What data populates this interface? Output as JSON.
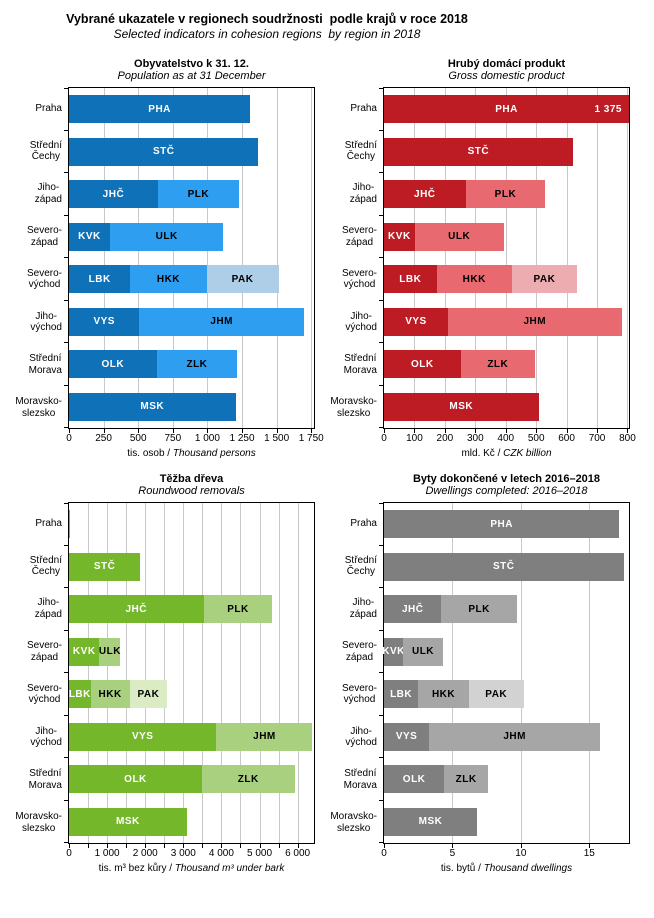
{
  "header": {
    "title": "Vybrané ukazatele v regionech soudržnosti  podle krajů v roce 2018",
    "subtitle": "Selected indicators in cohesion regions  by region in 2018"
  },
  "colors": {
    "blue_dark": "#0F72B8",
    "blue_mid": "#2E9FF0",
    "blue_light": "#AECDE6",
    "red_dark": "#BD1C24",
    "red_mid": "#E8696F",
    "red_light": "#ECACB0",
    "green_dark": "#74B72B",
    "green_mid": "#A9D07F",
    "green_light": "#DBECC5",
    "gray_dark": "#7F7F7F",
    "gray_mid": "#A6A6A6",
    "gray_light": "#D2D2D2",
    "gridline": "#C8C8C8",
    "axis": "#000000"
  },
  "chart_data": [
    {
      "id": "population",
      "type": "bar",
      "orientation": "horizontal-stacked",
      "title": "Obyvatelstvo k 31. 12.",
      "subtitle": "Population as at 31 December",
      "xlabel": {
        "cz": "tis. osob",
        "sep": " / ",
        "en": "Thousand persons"
      },
      "xlim": [
        0,
        1770
      ],
      "grid": "on",
      "gridlines": [
        250,
        500,
        750,
        1000,
        1250,
        1500,
        1750
      ],
      "ticks": [
        {
          "value": 0,
          "label": "0"
        },
        {
          "value": 250,
          "label": "250"
        },
        {
          "value": 500,
          "label": "500"
        },
        {
          "value": 750,
          "label": "750"
        },
        {
          "value": 1000,
          "label": "1 000"
        },
        {
          "value": 1250,
          "label": "1 250"
        },
        {
          "value": 1500,
          "label": "1 500"
        },
        {
          "value": 1750,
          "label": "1 750"
        }
      ],
      "palette": [
        "#0F72B8",
        "#2E9FF0",
        "#AECDE6"
      ],
      "rows": [
        {
          "category": "Praha",
          "segments": [
            {
              "code": "PHA",
              "label": "PHA",
              "value": 1309,
              "shade": 0
            }
          ]
        },
        {
          "category": "Střední\nČechy",
          "segments": [
            {
              "code": "STČ",
              "label": "STČ",
              "value": 1369,
              "shade": 0
            }
          ]
        },
        {
          "category": "Jiho-\nzápad",
          "segments": [
            {
              "code": "JHČ",
              "label": "JHČ",
              "value": 642,
              "shade": 0
            },
            {
              "code": "PLK",
              "label": "PLK",
              "value": 585,
              "shade": 1
            }
          ]
        },
        {
          "category": "Severo-\nzápad",
          "segments": [
            {
              "code": "KVK",
              "label": "KVK",
              "value": 295,
              "shade": 0
            },
            {
              "code": "ULK",
              "label": "ULK",
              "value": 821,
              "shade": 1
            }
          ]
        },
        {
          "category": "Severo-\nvýchod",
          "segments": [
            {
              "code": "LBK",
              "label": "LBK",
              "value": 443,
              "shade": 0
            },
            {
              "code": "HKK",
              "label": "HKK",
              "value": 551,
              "shade": 1
            },
            {
              "code": "PAK",
              "label": "PAK",
              "value": 520,
              "shade": 2
            }
          ]
        },
        {
          "category": "Jiho-\nvýchod",
          "segments": [
            {
              "code": "VYS",
              "label": "VYS",
              "value": 509,
              "shade": 0
            },
            {
              "code": "JHM",
              "label": "JHM",
              "value": 1188,
              "shade": 1
            }
          ]
        },
        {
          "category": "Střední\nMorava",
          "segments": [
            {
              "code": "OLK",
              "label": "OLK",
              "value": 633,
              "shade": 0
            },
            {
              "code": "ZLK",
              "label": "ZLK",
              "value": 583,
              "shade": 1
            }
          ]
        },
        {
          "category": "Moravsko-\nslezsko",
          "segments": [
            {
              "code": "MSK",
              "label": "MSK",
              "value": 1203,
              "shade": 0
            }
          ]
        }
      ]
    },
    {
      "id": "gdp",
      "type": "bar",
      "orientation": "horizontal-stacked",
      "title": "Hrubý domácí produkt",
      "subtitle": "Gross domestic product",
      "xlabel": {
        "cz": "mld. Kč",
        "sep": " / ",
        "en": "CZK billion"
      },
      "xlim": [
        0,
        805
      ],
      "grid": "on",
      "gridlines": [
        100,
        200,
        300,
        400,
        500,
        600,
        700,
        800
      ],
      "ticks": [
        {
          "value": 0,
          "label": "0"
        },
        {
          "value": 100,
          "label": "100"
        },
        {
          "value": 200,
          "label": "200"
        },
        {
          "value": 300,
          "label": "300"
        },
        {
          "value": 400,
          "label": "400"
        },
        {
          "value": 500,
          "label": "500"
        },
        {
          "value": 600,
          "label": "600"
        },
        {
          "value": 700,
          "label": "700"
        },
        {
          "value": 800,
          "label": "800"
        }
      ],
      "palette": [
        "#BD1C24",
        "#E8696F",
        "#ECACB0"
      ],
      "rows": [
        {
          "category": "Praha",
          "segments": [
            {
              "code": "PHA",
              "label": "PHA",
              "value": 1375,
              "shade": 0,
              "value_label": "1 375"
            }
          ]
        },
        {
          "category": "Střední\nČechy",
          "segments": [
            {
              "code": "STČ",
              "label": "STČ",
              "value": 620,
              "shade": 0
            }
          ]
        },
        {
          "category": "Jiho-\nzápad",
          "segments": [
            {
              "code": "JHČ",
              "label": "JHČ",
              "value": 268,
              "shade": 0
            },
            {
              "code": "PLK",
              "label": "PLK",
              "value": 262,
              "shade": 1
            }
          ]
        },
        {
          "category": "Severo-\nzápad",
          "segments": [
            {
              "code": "KVK",
              "label": "KVK",
              "value": 101,
              "shade": 0
            },
            {
              "code": "ULK",
              "label": "ULK",
              "value": 292,
              "shade": 1
            }
          ]
        },
        {
          "category": "Severo-\nvýchod",
          "segments": [
            {
              "code": "LBK",
              "label": "LBK",
              "value": 173,
              "shade": 0
            },
            {
              "code": "HKK",
              "label": "HKK",
              "value": 247,
              "shade": 1
            },
            {
              "code": "PAK",
              "label": "PAK",
              "value": 214,
              "shade": 2
            }
          ]
        },
        {
          "category": "Jiho-\nvýchod",
          "segments": [
            {
              "code": "VYS",
              "label": "VYS",
              "value": 210,
              "shade": 0
            },
            {
              "code": "JHM",
              "label": "JHM",
              "value": 571,
              "shade": 1
            }
          ]
        },
        {
          "category": "Střední\nMorava",
          "segments": [
            {
              "code": "OLK",
              "label": "OLK",
              "value": 252,
              "shade": 0
            },
            {
              "code": "ZLK",
              "label": "ZLK",
              "value": 244,
              "shade": 1
            }
          ]
        },
        {
          "category": "Moravsko-\nslezsko",
          "segments": [
            {
              "code": "MSK",
              "label": "MSK",
              "value": 508,
              "shade": 0
            }
          ]
        }
      ]
    },
    {
      "id": "roundwood",
      "type": "bar",
      "orientation": "horizontal-stacked",
      "title": "Těžba dřeva",
      "subtitle": "Roundwood removals",
      "xlabel": {
        "cz": "tis. m³ bez kůry",
        "sep": " / ",
        "en": "Thousand m³ under bark"
      },
      "xlim": [
        0,
        6430
      ],
      "grid": "on",
      "gridlines": [
        500,
        1000,
        1500,
        2000,
        2500,
        3000,
        3500,
        4000,
        4500,
        5000,
        5500,
        6000
      ],
      "ticks": [
        {
          "value": 0,
          "label": "0"
        },
        {
          "value": 500,
          "label": ""
        },
        {
          "value": 1000,
          "label": "1 000"
        },
        {
          "value": 1500,
          "label": ""
        },
        {
          "value": 2000,
          "label": "2 000"
        },
        {
          "value": 2500,
          "label": ""
        },
        {
          "value": 3000,
          "label": "3 000"
        },
        {
          "value": 3500,
          "label": ""
        },
        {
          "value": 4000,
          "label": "4 000"
        },
        {
          "value": 4500,
          "label": ""
        },
        {
          "value": 5000,
          "label": "5 000"
        },
        {
          "value": 5500,
          "label": ""
        },
        {
          "value": 6000,
          "label": "6 000"
        }
      ],
      "palette": [
        "#74B72B",
        "#A9D07F",
        "#DBECC5"
      ],
      "rows": [
        {
          "category": "Praha",
          "segments": [
            {
              "code": "PHA",
              "label": "",
              "value": 30,
              "shade": 0
            }
          ]
        },
        {
          "category": "Střední\nČechy",
          "segments": [
            {
              "code": "STČ",
              "label": "STČ",
              "value": 1870,
              "shade": 0
            }
          ]
        },
        {
          "category": "Jiho-\nzápad",
          "segments": [
            {
              "code": "JHČ",
              "label": "JHČ",
              "value": 3530,
              "shade": 0
            },
            {
              "code": "PLK",
              "label": "PLK",
              "value": 1810,
              "shade": 1
            }
          ]
        },
        {
          "category": "Severo-\nzápad",
          "segments": [
            {
              "code": "KVK",
              "label": "KVK",
              "value": 800,
              "shade": 0
            },
            {
              "code": "ULK",
              "label": "ULK",
              "value": 550,
              "shade": 1
            }
          ]
        },
        {
          "category": "Severo-\nvýchod",
          "segments": [
            {
              "code": "LBK",
              "label": "LBK",
              "value": 570,
              "shade": 0
            },
            {
              "code": "HKK",
              "label": "HKK",
              "value": 1020,
              "shade": 1
            },
            {
              "code": "PAK",
              "label": "PAK",
              "value": 990,
              "shade": 2
            }
          ]
        },
        {
          "category": "Jiho-\nvýchod",
          "segments": [
            {
              "code": "VYS",
              "label": "VYS",
              "value": 3870,
              "shade": 0
            },
            {
              "code": "JHM",
              "label": "JHM",
              "value": 2520,
              "shade": 1
            }
          ]
        },
        {
          "category": "Střední\nMorava",
          "segments": [
            {
              "code": "OLK",
              "label": "OLK",
              "value": 3490,
              "shade": 0
            },
            {
              "code": "ZLK",
              "label": "ZLK",
              "value": 2430,
              "shade": 1
            }
          ]
        },
        {
          "category": "Moravsko-\nslezsko",
          "segments": [
            {
              "code": "MSK",
              "label": "MSK",
              "value": 3090,
              "shade": 0
            }
          ]
        }
      ]
    },
    {
      "id": "dwellings",
      "type": "bar",
      "orientation": "horizontal-stacked",
      "title": "Byty dokončené v letech 2016–2018",
      "subtitle": "Dwellings completed: 2016–2018",
      "xlabel": {
        "cz": "tis. bytů",
        "sep": " / ",
        "en": "Thousand dwellings"
      },
      "xlim": [
        0,
        17.9
      ],
      "grid": "on",
      "gridlines": [
        5,
        10,
        15
      ],
      "ticks": [
        {
          "value": 0,
          "label": "0"
        },
        {
          "value": 5,
          "label": "5"
        },
        {
          "value": 10,
          "label": "10"
        },
        {
          "value": 15,
          "label": "15"
        }
      ],
      "palette": [
        "#7F7F7F",
        "#A6A6A6",
        "#D2D2D2"
      ],
      "rows": [
        {
          "category": "Praha",
          "segments": [
            {
              "code": "PHA",
              "label": "PHA",
              "value": 17.2,
              "shade": 0
            }
          ]
        },
        {
          "category": "Střední\nČechy",
          "segments": [
            {
              "code": "STČ",
              "label": "STČ",
              "value": 17.5,
              "shade": 0
            }
          ]
        },
        {
          "category": "Jiho-\nzápad",
          "segments": [
            {
              "code": "JHČ",
              "label": "JHČ",
              "value": 4.2,
              "shade": 0
            },
            {
              "code": "PLK",
              "label": "PLK",
              "value": 5.5,
              "shade": 1
            }
          ]
        },
        {
          "category": "Severo-\nzápad",
          "segments": [
            {
              "code": "KVK",
              "label": "KVK",
              "value": 1.4,
              "shade": 0
            },
            {
              "code": "ULK",
              "label": "ULK",
              "value": 2.9,
              "shade": 1
            }
          ]
        },
        {
          "category": "Severo-\nvýchod",
          "segments": [
            {
              "code": "LBK",
              "label": "LBK",
              "value": 2.5,
              "shade": 0
            },
            {
              "code": "HKK",
              "label": "HKK",
              "value": 3.7,
              "shade": 1
            },
            {
              "code": "PAK",
              "label": "PAK",
              "value": 4.0,
              "shade": 2
            }
          ]
        },
        {
          "category": "Jiho-\nvýchod",
          "segments": [
            {
              "code": "VYS",
              "label": "VYS",
              "value": 3.3,
              "shade": 0
            },
            {
              "code": "JHM",
              "label": "JHM",
              "value": 12.5,
              "shade": 1
            }
          ]
        },
        {
          "category": "Střední\nMorava",
          "segments": [
            {
              "code": "OLK",
              "label": "OLK",
              "value": 4.4,
              "shade": 0
            },
            {
              "code": "ZLK",
              "label": "ZLK",
              "value": 3.2,
              "shade": 1
            }
          ]
        },
        {
          "category": "Moravsko-\nslezsko",
          "segments": [
            {
              "code": "MSK",
              "label": "MSK",
              "value": 6.8,
              "shade": 0
            }
          ]
        }
      ]
    }
  ]
}
